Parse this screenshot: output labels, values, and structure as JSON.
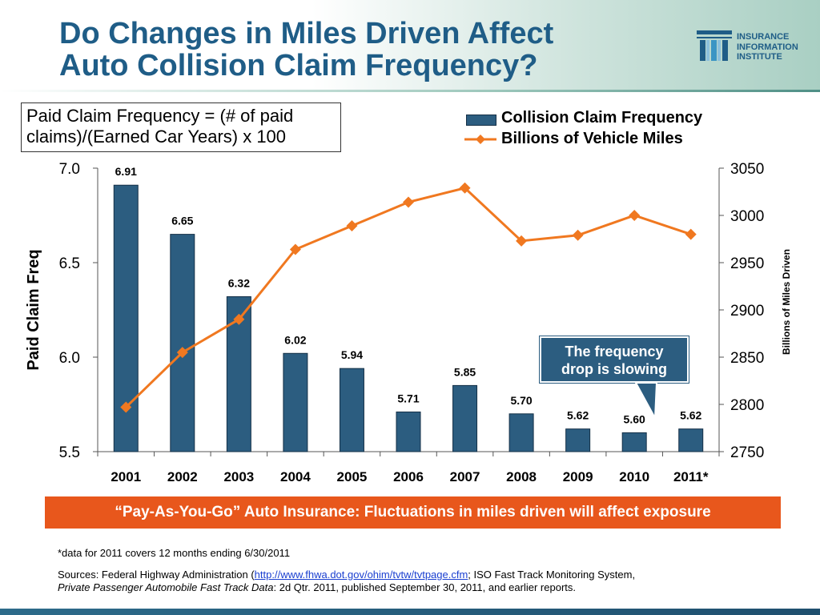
{
  "header": {
    "title_line1": "Do Changes in Miles Driven Affect",
    "title_line2": "Auto Collision Claim Frequency?",
    "logo_line1": "INSURANCE",
    "logo_line2": "INFORMATION",
    "logo_line3": "INSTITUTE"
  },
  "definition": {
    "line1": "Paid Claim Frequency = (# of paid",
    "line2": "claims)/(Earned Car Years) x 100"
  },
  "callout": {
    "line1": "The frequency",
    "line2": "drop is slowing"
  },
  "banner": "“Pay-As-You-Go” Auto Insurance: Fluctuations in miles driven will affect exposure",
  "footnote": "*data for 2011 covers 12 months ending 6/30/2011",
  "sources": {
    "prefix": "Sources: Federal Highway Administration (",
    "link": "http://www.fhwa.dot.gov/ohim/tvtw/tvtpage.cfm",
    "middle": ";  ISO Fast Track Monitoring System,",
    "italic": "Private Passenger Automobile Fast Track Data",
    "suffix": ": 2d Qtr. 2011, published September 30, 2011, and earlier reports."
  },
  "colors": {
    "bar": "#2c5d80",
    "line": "#f07820",
    "title": "#1f5d87",
    "banner": "#e8571c"
  },
  "chart_data": {
    "type": "bar",
    "categories": [
      "2001",
      "2002",
      "2003",
      "2004",
      "2005",
      "2006",
      "2007",
      "2008",
      "2009",
      "2010",
      "2011*"
    ],
    "series": [
      {
        "name": "Collision Claim Frequency",
        "type": "bar",
        "axis": "left",
        "values": [
          6.91,
          6.65,
          6.32,
          6.02,
          5.94,
          5.71,
          5.85,
          5.7,
          5.62,
          5.6,
          5.62
        ],
        "labels": [
          "6.91",
          "6.65",
          "6.32",
          "6.02",
          "5.94",
          "5.71",
          "5.85",
          "5.70",
          "5.62",
          "5.60",
          "5.62"
        ]
      },
      {
        "name": "Billions of Vehicle Miles",
        "type": "line",
        "axis": "right",
        "values": [
          2797,
          2855,
          2890,
          2964,
          2989,
          3014,
          3029,
          2973,
          2979,
          3000,
          2980
        ]
      }
    ],
    "ylabel": "Paid Claim Freq",
    "y2label": "Billions of Miles Driven",
    "ylim": [
      5.5,
      7.0
    ],
    "yticks": [
      "5.5",
      "6.0",
      "6.5",
      "7.0"
    ],
    "y2lim": [
      2750,
      3050
    ],
    "y2ticks": [
      "2750",
      "2800",
      "2850",
      "2900",
      "2950",
      "3000",
      "3050"
    ],
    "legend_position": "top-right",
    "grid": false
  }
}
